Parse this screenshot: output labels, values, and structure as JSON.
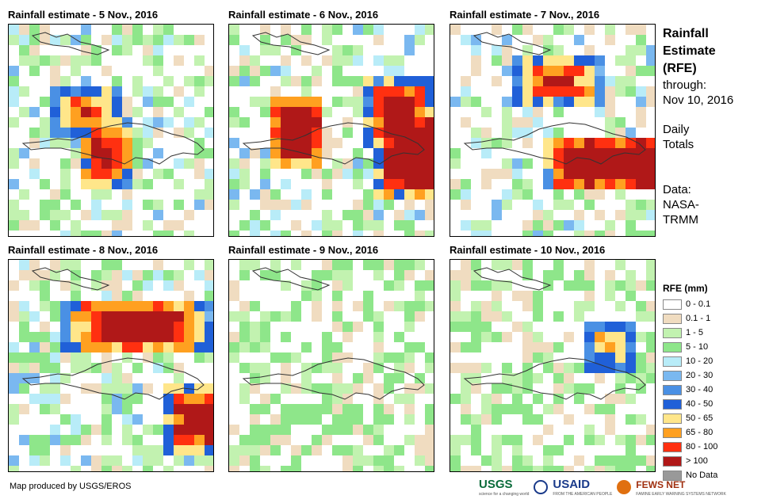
{
  "panels": [
    {
      "title": "Rainfall estimate - 5 Nov., 2016",
      "seed": 5,
      "hot": [
        [
          9,
          12,
          2,
          3,
          1.2
        ],
        [
          7,
          8,
          3,
          2,
          0.8
        ]
      ]
    },
    {
      "title": "Rainfall estimate - 6 Nov., 2016",
      "seed": 6,
      "hot": [
        [
          6,
          10,
          2,
          3,
          2.0
        ],
        [
          18,
          12,
          4,
          4,
          2.0
        ],
        [
          16,
          8,
          3,
          3,
          1.3
        ]
      ]
    },
    {
      "title": "Rainfall estimate - 7 Nov., 2016",
      "seed": 7,
      "hot": [
        [
          15,
          13,
          6,
          2,
          2.2
        ],
        [
          10,
          5,
          4,
          2,
          1.0
        ]
      ]
    },
    {
      "title": "Rainfall estimate - 8 Nov., 2016",
      "seed": 8,
      "hot": [
        [
          12,
          6,
          7,
          2,
          1.6
        ],
        [
          18,
          15,
          3,
          3,
          1.4
        ]
      ]
    },
    {
      "title": "Rainfall estimate - 9 Nov., 2016",
      "seed": 9,
      "hot": []
    },
    {
      "title": "Rainfall estimate - 10 Nov., 2016",
      "seed": 10,
      "hot": [
        [
          15,
          8,
          2,
          2,
          0.6
        ]
      ]
    }
  ],
  "side": {
    "title_line1": "Rainfall",
    "title_line2": "Estimate",
    "title_line3": "(RFE)",
    "through": "through:",
    "date": "Nov 10, 2016",
    "daily1": "Daily",
    "daily2": "Totals",
    "data1": "Data:",
    "data2": "NASA-",
    "data3": "TRMM"
  },
  "legend": {
    "title": "RFE (mm)",
    "items": [
      {
        "label": "0 - 0.1",
        "color": "#ffffff"
      },
      {
        "label": "0.1 - 1",
        "color": "#f0dcc0"
      },
      {
        "label": "1 - 5",
        "color": "#c2f2b0"
      },
      {
        "label": "5 - 10",
        "color": "#8ee68a"
      },
      {
        "label": "10 - 20",
        "color": "#b8ecf8"
      },
      {
        "label": "20 - 30",
        "color": "#7ab8f0"
      },
      {
        "label": "30 - 40",
        "color": "#4a90e4"
      },
      {
        "label": "40 - 50",
        "color": "#2060d8"
      },
      {
        "label": "50 - 65",
        "color": "#ffe68a"
      },
      {
        "label": "65 - 80",
        "color": "#ffa020"
      },
      {
        "label": "80 - 100",
        "color": "#ff3010"
      },
      {
        "label": "> 100",
        "color": "#b01818"
      },
      {
        "label": "No Data",
        "color": "#999999"
      }
    ]
  },
  "credit": "Map produced by USGS/EROS",
  "logos": {
    "usgs": "USGS",
    "usgs_tag": "science for a changing world",
    "usaid": "USAID",
    "usaid_tag": "FROM THE AMERICAN PEOPLE",
    "fews": "FEWS NET",
    "fews_tag": "FAMINE EARLY WARNING SYSTEMS NETWORK"
  }
}
